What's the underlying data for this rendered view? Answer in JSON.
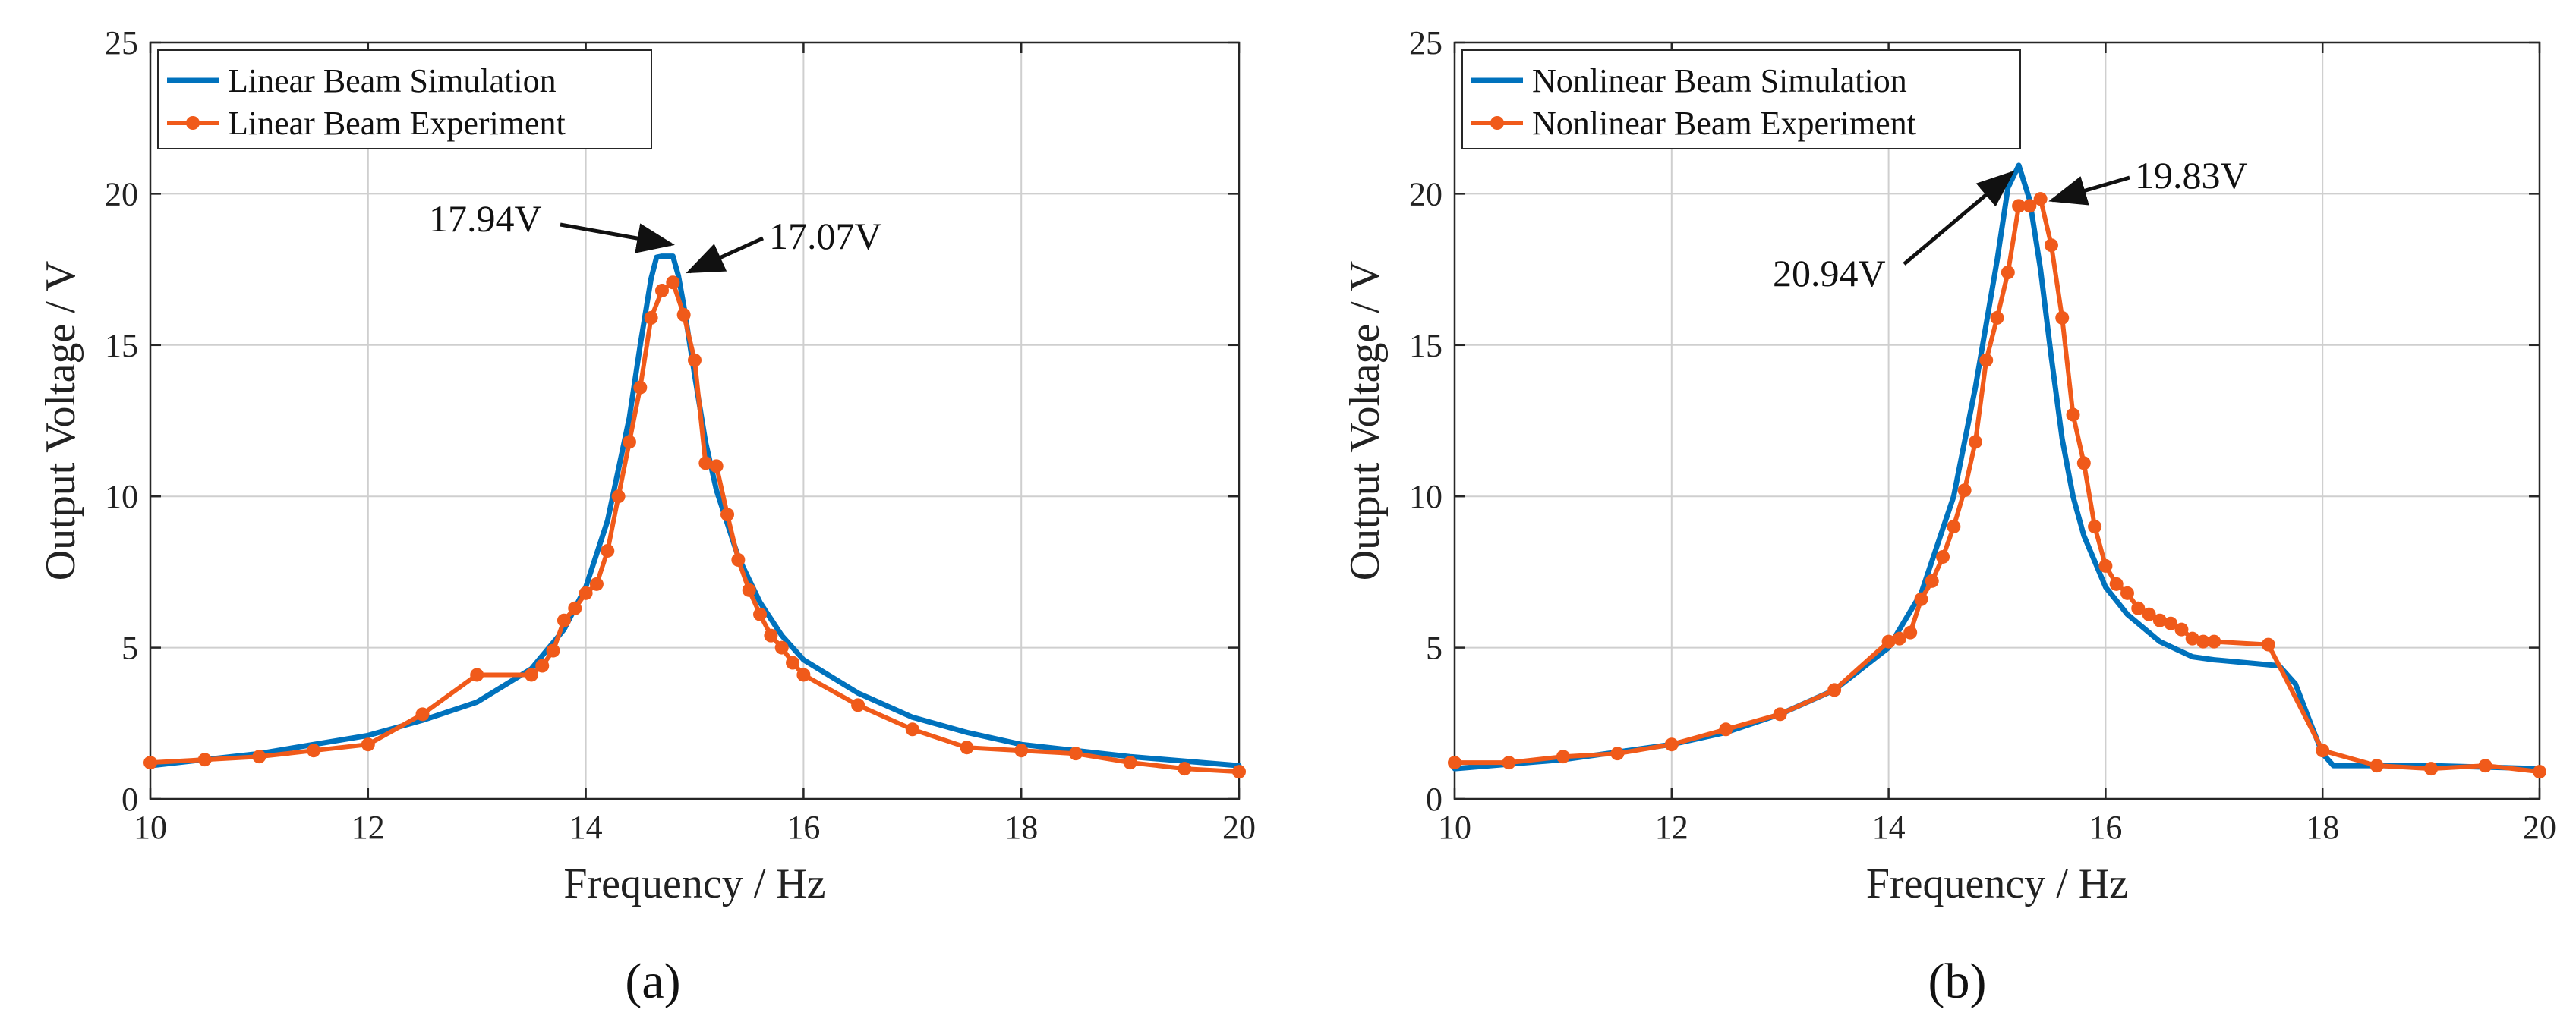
{
  "colors": {
    "simulation": "#0072BD",
    "experiment": "#F05A1A",
    "grid": "#cfcfcf",
    "axis": "#262626",
    "arrow": "#111111"
  },
  "chart_data": [
    {
      "type": "line",
      "panel_label": "(a)",
      "xlabel": "Frequency / Hz",
      "ylabel": "Output Voltage / V",
      "xlim": [
        10,
        20
      ],
      "ylim": [
        0,
        25
      ],
      "xticks": [
        10,
        12,
        14,
        16,
        18,
        20
      ],
      "yticks": [
        0,
        5,
        10,
        15,
        20,
        25
      ],
      "grid": true,
      "legend_position": "top-left",
      "series": [
        {
          "name": "Linear Beam Simulation",
          "color_key": "simulation",
          "markers": false,
          "x": [
            10,
            11,
            12,
            12.5,
            13,
            13.5,
            13.8,
            14,
            14.2,
            14.4,
            14.5,
            14.6,
            14.65,
            14.7,
            14.8,
            14.85,
            14.9,
            15,
            15.1,
            15.2,
            15.4,
            15.6,
            15.8,
            16,
            16.5,
            17,
            17.5,
            18,
            19,
            20
          ],
          "y": [
            1.1,
            1.5,
            2.1,
            2.6,
            3.2,
            4.3,
            5.6,
            7.0,
            9.2,
            12.6,
            15.0,
            17.2,
            17.9,
            17.94,
            17.94,
            17.3,
            16.3,
            14.0,
            11.8,
            10.2,
            8.0,
            6.5,
            5.4,
            4.6,
            3.5,
            2.7,
            2.2,
            1.8,
            1.4,
            1.1
          ]
        },
        {
          "name": "Linear Beam Experiment",
          "color_key": "experiment",
          "markers": true,
          "x": [
            10,
            10.5,
            11,
            11.5,
            12,
            12.5,
            13,
            13.5,
            13.6,
            13.7,
            13.8,
            13.9,
            14,
            14.1,
            14.2,
            14.3,
            14.4,
            14.5,
            14.6,
            14.7,
            14.8,
            14.9,
            15,
            15.1,
            15.2,
            15.3,
            15.4,
            15.5,
            15.6,
            15.7,
            15.8,
            15.9,
            16,
            16.5,
            17,
            17.5,
            18,
            18.5,
            19,
            19.5,
            20
          ],
          "y": [
            1.2,
            1.3,
            1.4,
            1.6,
            1.8,
            2.8,
            4.1,
            4.1,
            4.4,
            4.9,
            5.9,
            6.3,
            6.8,
            7.1,
            8.2,
            10.0,
            11.8,
            13.6,
            15.9,
            16.8,
            17.07,
            16.0,
            14.5,
            11.1,
            11.0,
            9.4,
            7.9,
            6.9,
            6.1,
            5.4,
            5.0,
            4.5,
            4.1,
            3.1,
            2.3,
            1.7,
            1.6,
            1.5,
            1.2,
            1.0,
            0.9
          ]
        }
      ],
      "annotations": [
        {
          "text": "17.94V",
          "x": 14.75,
          "y": 17.94
        },
        {
          "text": "17.07V",
          "x": 14.8,
          "y": 17.07
        }
      ]
    },
    {
      "type": "line",
      "panel_label": "(b)",
      "xlabel": "Frequency / Hz",
      "ylabel": "Output Voltage / V",
      "xlim": [
        10,
        20
      ],
      "ylim": [
        0,
        25
      ],
      "xticks": [
        10,
        12,
        14,
        16,
        18,
        20
      ],
      "yticks": [
        0,
        5,
        10,
        15,
        20,
        25
      ],
      "grid": true,
      "legend_position": "top-left",
      "series": [
        {
          "name": "Nonlinear Beam Simulation",
          "color_key": "simulation",
          "markers": false,
          "x": [
            10,
            11,
            12,
            12.5,
            13,
            13.5,
            14,
            14.3,
            14.6,
            14.8,
            15,
            15.1,
            15.2,
            15.3,
            15.4,
            15.5,
            15.6,
            15.7,
            15.8,
            16,
            16.2,
            16.5,
            16.8,
            17,
            17.3,
            17.6,
            17.75,
            17.9,
            18,
            18.1,
            18.5,
            19,
            20
          ],
          "y": [
            1.0,
            1.3,
            1.8,
            2.2,
            2.8,
            3.6,
            5.0,
            6.8,
            10.0,
            13.6,
            17.8,
            20.2,
            20.94,
            19.8,
            17.5,
            14.6,
            11.9,
            10.0,
            8.7,
            7.0,
            6.1,
            5.2,
            4.7,
            4.6,
            4.5,
            4.4,
            3.8,
            2.4,
            1.5,
            1.1,
            1.1,
            1.1,
            1.0
          ]
        },
        {
          "name": "Nonlinear Beam Experiment",
          "color_key": "experiment",
          "markers": true,
          "x": [
            10,
            10.5,
            11,
            11.5,
            12,
            12.5,
            13,
            13.5,
            14,
            14.1,
            14.2,
            14.3,
            14.4,
            14.5,
            14.6,
            14.7,
            14.8,
            14.9,
            15,
            15.1,
            15.2,
            15.3,
            15.4,
            15.5,
            15.6,
            15.7,
            15.8,
            15.9,
            16,
            16.1,
            16.2,
            16.3,
            16.4,
            16.5,
            16.6,
            16.7,
            16.8,
            16.9,
            17,
            17.5,
            18,
            18.5,
            19,
            19.5,
            20
          ],
          "y": [
            1.2,
            1.2,
            1.4,
            1.5,
            1.8,
            2.3,
            2.8,
            3.6,
            5.2,
            5.3,
            5.5,
            6.6,
            7.2,
            8.0,
            9.0,
            10.2,
            11.8,
            14.5,
            15.9,
            17.4,
            19.6,
            19.6,
            19.83,
            18.3,
            15.9,
            12.7,
            11.1,
            9.0,
            7.7,
            7.1,
            6.8,
            6.3,
            6.1,
            5.9,
            5.8,
            5.6,
            5.3,
            5.2,
            5.2,
            5.1,
            1.6,
            1.1,
            1.0,
            1.1,
            0.9
          ]
        }
      ],
      "annotations": [
        {
          "text": "20.94V",
          "x": 15.2,
          "y": 20.94
        },
        {
          "text": "19.83V",
          "x": 15.45,
          "y": 19.83
        }
      ]
    }
  ]
}
